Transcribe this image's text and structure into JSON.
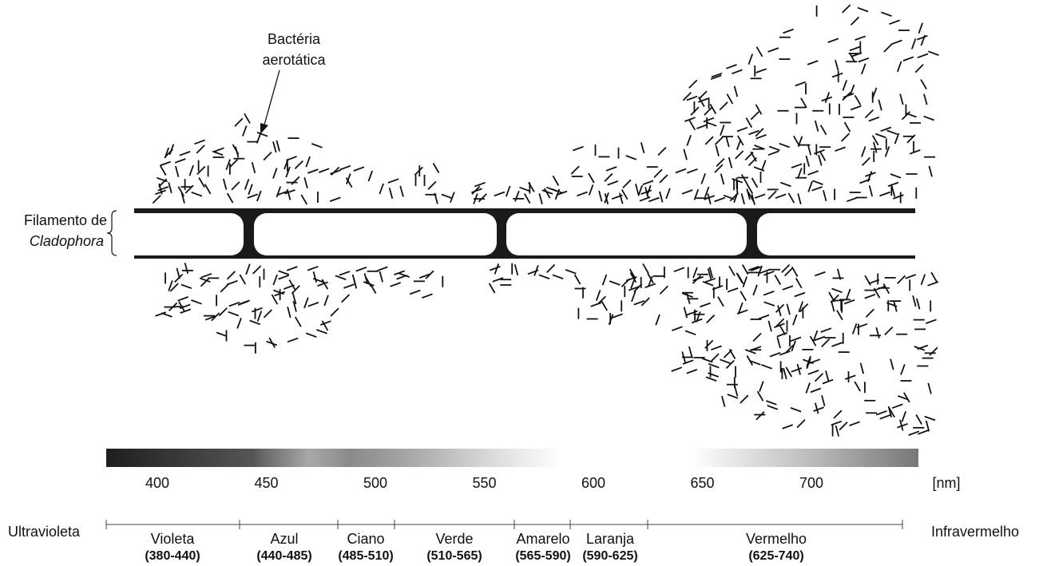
{
  "annotation": {
    "lines": [
      "Bactéria",
      "aerotática"
    ]
  },
  "filament": {
    "label": "Filamento de",
    "species": "Cladophora"
  },
  "scale": {
    "ticks": [
      400,
      450,
      500,
      550,
      600,
      650,
      700
    ],
    "unit": "[nm]"
  },
  "spectrum": {
    "left": "Ultravioleta",
    "right": "Infravermelho",
    "bands": [
      {
        "name": "Violeta",
        "range": "(380-440)"
      },
      {
        "name": "Azul",
        "range": "(440-485)"
      },
      {
        "name": "Ciano",
        "range": "(485-510)"
      },
      {
        "name": "Verde",
        "range": "(510-565)"
      },
      {
        "name": "Amarelo",
        "range": "(565-590)"
      },
      {
        "name": "Laranja",
        "range": "(590-625)"
      },
      {
        "name": "Vermelho",
        "range": "(625-740)"
      }
    ]
  }
}
